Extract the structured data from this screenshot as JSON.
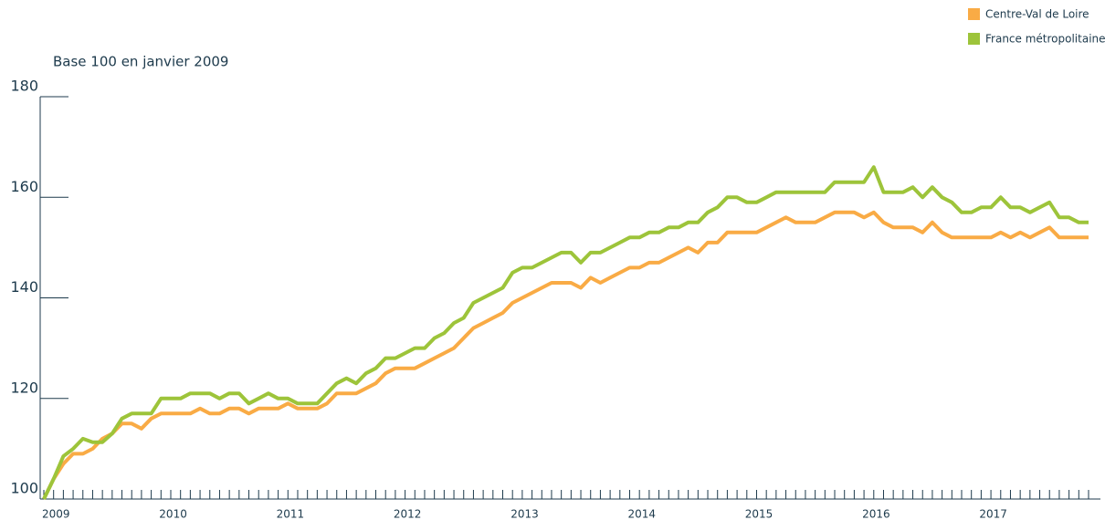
{
  "chart_data": {
    "type": "line",
    "subtitle": "Base 100 en janvier 2009",
    "legend": "top-right",
    "categories": [
      "2009",
      null,
      null,
      null,
      null,
      null,
      null,
      null,
      null,
      null,
      null,
      null,
      "2010",
      null,
      null,
      null,
      null,
      null,
      null,
      null,
      null,
      null,
      null,
      null,
      "2011",
      null,
      null,
      null,
      null,
      null,
      null,
      null,
      null,
      null,
      null,
      null,
      "2012",
      null,
      null,
      null,
      null,
      null,
      null,
      null,
      null,
      null,
      null,
      null,
      "2013",
      null,
      null,
      null,
      null,
      null,
      null,
      null,
      null,
      null,
      null,
      null,
      "2014",
      null,
      null,
      null,
      null,
      null,
      null,
      null,
      null,
      null,
      null,
      null,
      "2015",
      null,
      null,
      null,
      null,
      null,
      null,
      null,
      null,
      null,
      null,
      null,
      "2016",
      null,
      null,
      null,
      null,
      null,
      null,
      null,
      null,
      null,
      null,
      null,
      "2017",
      null,
      null,
      null,
      null,
      null,
      null,
      null,
      null,
      null,
      null,
      null
    ],
    "ylim": [
      100,
      180
    ],
    "yticks": [
      100,
      120,
      140,
      160,
      180
    ],
    "series": [
      {
        "name": "Centre-Val de Loire",
        "color": "#f9ab45",
        "values": [
          100,
          104,
          107,
          109,
          109,
          110,
          112,
          113,
          115,
          115,
          114,
          116,
          117,
          117,
          117,
          117,
          118,
          117,
          117,
          118,
          118,
          117,
          118,
          118,
          118,
          119,
          118,
          118,
          118,
          119,
          121,
          121,
          121,
          122,
          123,
          125,
          126,
          126,
          126,
          127,
          128,
          129,
          130,
          132,
          134,
          135,
          136,
          137,
          139,
          140,
          141,
          142,
          143,
          143,
          143,
          142,
          144,
          143,
          144,
          145,
          146,
          146,
          147,
          147,
          148,
          149,
          150,
          149,
          151,
          151,
          153,
          153,
          153,
          153,
          154,
          155,
          156,
          155,
          155,
          155,
          156,
          157,
          157,
          157,
          156,
          157,
          155,
          154,
          154,
          154,
          153,
          155,
          153,
          152,
          152,
          152,
          152,
          152,
          153,
          152,
          153,
          152,
          153,
          154,
          152,
          152,
          152,
          152
        ]
      },
      {
        "name": "France métropolitaine",
        "color": "#9dc43a",
        "values": [
          100,
          104,
          108.5,
          110,
          112,
          111.3,
          111.3,
          113,
          116,
          117,
          117,
          117,
          120,
          120,
          120,
          121,
          121,
          121,
          120,
          121,
          121,
          119,
          120,
          121,
          120,
          120,
          119,
          119,
          119,
          121,
          123,
          124,
          123,
          125,
          126,
          128,
          128,
          129,
          130,
          130,
          132,
          133,
          135,
          136,
          139,
          140,
          141,
          142,
          145,
          146,
          146,
          147,
          148,
          149,
          149,
          147,
          149,
          149,
          150,
          151,
          152,
          152,
          153,
          153,
          154,
          154,
          155,
          155,
          157,
          158,
          160,
          160,
          159,
          159,
          160,
          161,
          161,
          161,
          161,
          161,
          161,
          163,
          163,
          163,
          163,
          166,
          161,
          161,
          161,
          162,
          160,
          162,
          160,
          159,
          157,
          157,
          158,
          158,
          160,
          158,
          158,
          157,
          158,
          159,
          156,
          156,
          155,
          155
        ]
      }
    ]
  }
}
